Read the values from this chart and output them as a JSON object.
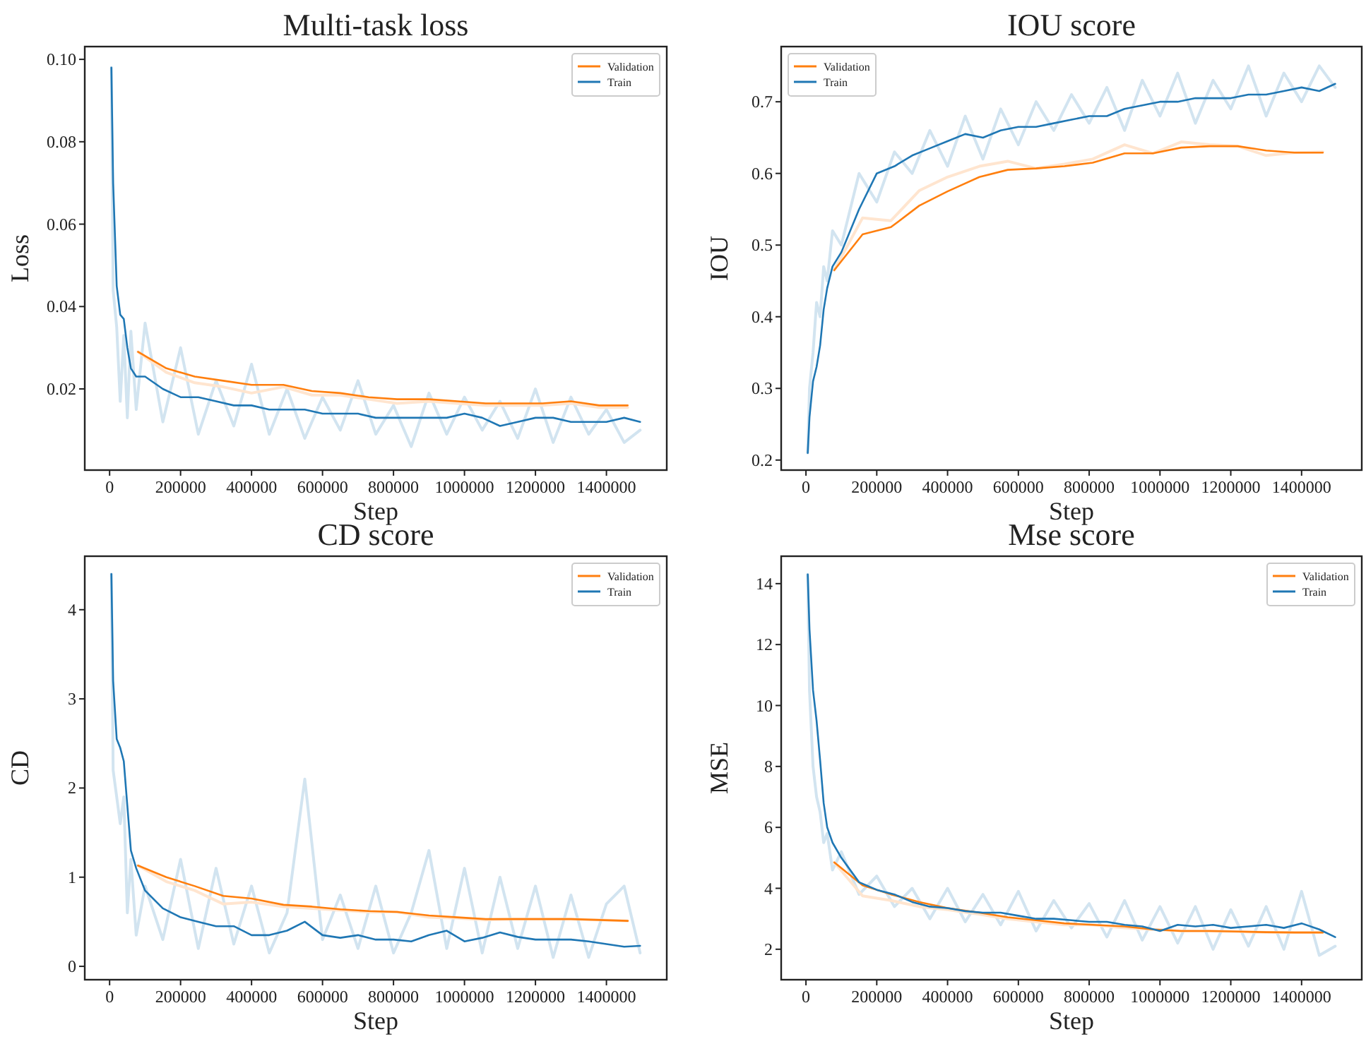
{
  "chart_data": [
    {
      "type": "line",
      "title": "Multi-task loss",
      "xlabel": "Step",
      "ylabel": "Loss",
      "legend": "top right",
      "xlim": [
        -70000,
        1570000
      ],
      "xticks": [
        0,
        200000,
        400000,
        600000,
        800000,
        1000000,
        1200000,
        1400000
      ],
      "ylim": [
        0.0003,
        0.1031
      ],
      "yticks": [
        0.02,
        0.04,
        0.06,
        0.08,
        {
          "value": 0.1,
          "label": "0.10"
        }
      ],
      "series": [
        {
          "color": "#d2e4f0",
          "x": [
            5000,
            10000,
            20000,
            30000,
            40000,
            50000,
            60000,
            75000,
            100000,
            150000,
            200000,
            250000,
            300000,
            350000,
            400000,
            450000,
            500000,
            550000,
            600000,
            650000,
            700000,
            750000,
            800000,
            850000,
            900000,
            950000,
            1000000,
            1050000,
            1100000,
            1150000,
            1200000,
            1250000,
            1300000,
            1350000,
            1400000,
            1450000,
            1495000
          ],
          "values": [
            0.098,
            0.044,
            0.035,
            0.017,
            0.033,
            0.013,
            0.034,
            0.015,
            0.036,
            0.012,
            0.03,
            0.009,
            0.022,
            0.011,
            0.026,
            0.009,
            0.02,
            0.008,
            0.018,
            0.01,
            0.022,
            0.009,
            0.016,
            0.006,
            0.019,
            0.009,
            0.018,
            0.01,
            0.017,
            0.008,
            0.02,
            0.007,
            0.018,
            0.009,
            0.015,
            0.007,
            0.01
          ]
        },
        {
          "color": "#ffe5cf",
          "x": [
            80000,
            160000,
            240000,
            320000,
            400000,
            490000,
            570000,
            650000,
            730000,
            810000,
            900000,
            980000,
            1060000,
            1140000,
            1220000,
            1300000,
            1380000,
            1460000
          ],
          "values": [
            0.029,
            0.024,
            0.0215,
            0.0205,
            0.019,
            0.0205,
            0.0185,
            0.0185,
            0.0175,
            0.0165,
            0.017,
            0.0165,
            0.016,
            0.016,
            0.016,
            0.0165,
            0.0155,
            0.0155
          ]
        },
        {
          "name": "Validation",
          "color": "#ff7f0e",
          "x": [
            80000,
            160000,
            240000,
            320000,
            400000,
            490000,
            570000,
            650000,
            730000,
            810000,
            900000,
            980000,
            1060000,
            1140000,
            1220000,
            1300000,
            1380000,
            1460000
          ],
          "values": [
            0.029,
            0.025,
            0.023,
            0.022,
            0.021,
            0.021,
            0.0195,
            0.019,
            0.018,
            0.0175,
            0.0175,
            0.017,
            0.0165,
            0.0165,
            0.0165,
            0.017,
            0.016,
            0.016
          ]
        },
        {
          "name": "Train",
          "color": "#1f77b4",
          "x": [
            5000,
            10000,
            20000,
            30000,
            40000,
            50000,
            60000,
            75000,
            100000,
            150000,
            200000,
            250000,
            300000,
            350000,
            400000,
            450000,
            500000,
            550000,
            600000,
            650000,
            700000,
            750000,
            800000,
            850000,
            900000,
            950000,
            1000000,
            1050000,
            1100000,
            1150000,
            1200000,
            1250000,
            1300000,
            1350000,
            1400000,
            1450000,
            1495000
          ],
          "values": [
            0.098,
            0.07,
            0.045,
            0.038,
            0.037,
            0.03,
            0.025,
            0.023,
            0.023,
            0.02,
            0.018,
            0.018,
            0.017,
            0.016,
            0.016,
            0.015,
            0.015,
            0.015,
            0.014,
            0.014,
            0.014,
            0.013,
            0.013,
            0.013,
            0.013,
            0.013,
            0.014,
            0.013,
            0.011,
            0.012,
            0.013,
            0.013,
            0.012,
            0.012,
            0.012,
            0.013,
            0.012
          ]
        }
      ]
    },
    {
      "type": "line",
      "title": "IOU score",
      "xlabel": "Step",
      "ylabel": "IOU",
      "legend": "top left",
      "xlim": [
        -70000,
        1570000
      ],
      "xticks": [
        0,
        200000,
        400000,
        600000,
        800000,
        1000000,
        1200000,
        1400000
      ],
      "ylim": [
        0.186,
        0.777
      ],
      "yticks": [
        0.2,
        0.3,
        0.4,
        0.5,
        0.6,
        0.7
      ],
      "series": [
        {
          "color": "#d2e4f0",
          "x": [
            5000,
            10000,
            20000,
            30000,
            40000,
            50000,
            60000,
            75000,
            100000,
            150000,
            200000,
            250000,
            300000,
            350000,
            400000,
            450000,
            500000,
            550000,
            600000,
            650000,
            700000,
            750000,
            800000,
            850000,
            900000,
            950000,
            1000000,
            1050000,
            1100000,
            1150000,
            1200000,
            1250000,
            1300000,
            1350000,
            1400000,
            1450000,
            1495000
          ],
          "values": [
            0.21,
            0.3,
            0.35,
            0.42,
            0.4,
            0.47,
            0.45,
            0.52,
            0.5,
            0.6,
            0.56,
            0.63,
            0.6,
            0.66,
            0.61,
            0.68,
            0.62,
            0.69,
            0.64,
            0.7,
            0.66,
            0.71,
            0.67,
            0.72,
            0.66,
            0.73,
            0.68,
            0.74,
            0.67,
            0.73,
            0.69,
            0.75,
            0.68,
            0.74,
            0.7,
            0.75,
            0.72
          ]
        },
        {
          "color": "#ffe5cf",
          "x": [
            80000,
            160000,
            240000,
            320000,
            400000,
            490000,
            570000,
            650000,
            730000,
            810000,
            900000,
            980000,
            1060000,
            1140000,
            1220000,
            1300000,
            1380000,
            1460000
          ],
          "values": [
            0.465,
            0.538,
            0.534,
            0.576,
            0.595,
            0.61,
            0.617,
            0.607,
            0.613,
            0.62,
            0.64,
            0.628,
            0.644,
            0.64,
            0.638,
            0.625,
            0.629,
            0.63
          ]
        },
        {
          "name": "Validation",
          "color": "#ff7f0e",
          "x": [
            80000,
            160000,
            240000,
            320000,
            400000,
            490000,
            570000,
            650000,
            730000,
            810000,
            900000,
            980000,
            1060000,
            1140000,
            1220000,
            1300000,
            1380000,
            1460000
          ],
          "values": [
            0.465,
            0.515,
            0.525,
            0.555,
            0.575,
            0.595,
            0.605,
            0.607,
            0.61,
            0.615,
            0.628,
            0.628,
            0.636,
            0.638,
            0.638,
            0.632,
            0.629,
            0.629
          ]
        },
        {
          "name": "Train",
          "color": "#1f77b4",
          "x": [
            5000,
            10000,
            20000,
            30000,
            40000,
            50000,
            60000,
            75000,
            100000,
            150000,
            200000,
            250000,
            300000,
            350000,
            400000,
            450000,
            500000,
            550000,
            600000,
            650000,
            700000,
            750000,
            800000,
            850000,
            900000,
            950000,
            1000000,
            1050000,
            1100000,
            1150000,
            1200000,
            1250000,
            1300000,
            1350000,
            1400000,
            1450000,
            1495000
          ],
          "values": [
            0.21,
            0.26,
            0.31,
            0.33,
            0.36,
            0.41,
            0.44,
            0.47,
            0.49,
            0.55,
            0.6,
            0.61,
            0.625,
            0.635,
            0.645,
            0.655,
            0.65,
            0.66,
            0.665,
            0.665,
            0.67,
            0.675,
            0.68,
            0.68,
            0.69,
            0.695,
            0.7,
            0.7,
            0.705,
            0.705,
            0.705,
            0.71,
            0.71,
            0.715,
            0.72,
            0.715,
            0.725
          ]
        }
      ]
    },
    {
      "type": "line",
      "title": "CD score",
      "xlabel": "Step",
      "ylabel": "CD",
      "legend": "top right",
      "xlim": [
        -70000,
        1570000
      ],
      "xticks": [
        0,
        200000,
        400000,
        600000,
        800000,
        1000000,
        1200000,
        1400000
      ],
      "ylim": [
        -0.15,
        4.6
      ],
      "yticks": [
        0,
        1,
        2,
        3,
        4
      ],
      "series": [
        {
          "color": "#d2e4f0",
          "x": [
            5000,
            10000,
            20000,
            30000,
            40000,
            50000,
            60000,
            75000,
            100000,
            150000,
            200000,
            250000,
            300000,
            350000,
            400000,
            450000,
            500000,
            550000,
            600000,
            650000,
            700000,
            750000,
            800000,
            850000,
            900000,
            950000,
            1000000,
            1050000,
            1100000,
            1150000,
            1200000,
            1250000,
            1300000,
            1350000,
            1400000,
            1450000,
            1495000
          ],
          "values": [
            4.4,
            2.2,
            1.9,
            1.6,
            1.9,
            0.6,
            1.2,
            0.35,
            0.9,
            0.3,
            1.2,
            0.2,
            1.1,
            0.25,
            0.9,
            0.15,
            0.6,
            2.1,
            0.3,
            0.8,
            0.2,
            0.9,
            0.15,
            0.6,
            1.3,
            0.2,
            1.1,
            0.15,
            1.0,
            0.2,
            0.9,
            0.1,
            0.8,
            0.1,
            0.7,
            0.9,
            0.15
          ]
        },
        {
          "color": "#ffe5cf",
          "x": [
            80000,
            160000,
            240000,
            320000,
            400000,
            490000,
            570000,
            650000,
            730000,
            810000,
            900000,
            980000,
            1060000,
            1140000,
            1220000,
            1300000,
            1380000,
            1460000
          ],
          "values": [
            1.13,
            0.95,
            0.85,
            0.7,
            0.72,
            0.67,
            0.65,
            0.63,
            0.61,
            0.61,
            0.55,
            0.54,
            0.52,
            0.53,
            0.53,
            0.53,
            0.52,
            0.51
          ]
        },
        {
          "name": "Validation",
          "color": "#ff7f0e",
          "x": [
            80000,
            160000,
            240000,
            320000,
            400000,
            490000,
            570000,
            650000,
            730000,
            810000,
            900000,
            980000,
            1060000,
            1140000,
            1220000,
            1300000,
            1380000,
            1460000
          ],
          "values": [
            1.13,
            1.0,
            0.9,
            0.79,
            0.76,
            0.69,
            0.67,
            0.64,
            0.62,
            0.61,
            0.57,
            0.55,
            0.53,
            0.53,
            0.53,
            0.53,
            0.52,
            0.51
          ]
        },
        {
          "name": "Train",
          "color": "#1f77b4",
          "x": [
            5000,
            10000,
            20000,
            30000,
            40000,
            50000,
            60000,
            75000,
            100000,
            150000,
            200000,
            250000,
            300000,
            350000,
            400000,
            450000,
            500000,
            550000,
            600000,
            650000,
            700000,
            750000,
            800000,
            850000,
            900000,
            950000,
            1000000,
            1050000,
            1100000,
            1150000,
            1200000,
            1250000,
            1300000,
            1350000,
            1400000,
            1450000,
            1495000
          ],
          "values": [
            4.4,
            3.2,
            2.55,
            2.45,
            2.3,
            1.8,
            1.3,
            1.1,
            0.85,
            0.65,
            0.55,
            0.5,
            0.45,
            0.45,
            0.35,
            0.35,
            0.4,
            0.5,
            0.35,
            0.32,
            0.35,
            0.3,
            0.3,
            0.28,
            0.35,
            0.4,
            0.28,
            0.32,
            0.38,
            0.33,
            0.3,
            0.3,
            0.3,
            0.28,
            0.25,
            0.22,
            0.23
          ]
        }
      ]
    },
    {
      "type": "line",
      "title": "Mse score",
      "xlabel": "Step",
      "ylabel": "MSE",
      "legend": "top right",
      "xlim": [
        -70000,
        1570000
      ],
      "xticks": [
        0,
        200000,
        400000,
        600000,
        800000,
        1000000,
        1200000,
        1400000
      ],
      "ylim": [
        1.0,
        14.9
      ],
      "yticks": [
        2,
        4,
        6,
        8,
        10,
        12,
        14
      ],
      "series": [
        {
          "color": "#d2e4f0",
          "x": [
            5000,
            10000,
            20000,
            30000,
            40000,
            50000,
            60000,
            75000,
            100000,
            150000,
            200000,
            250000,
            300000,
            350000,
            400000,
            450000,
            500000,
            550000,
            600000,
            650000,
            700000,
            750000,
            800000,
            850000,
            900000,
            950000,
            1000000,
            1050000,
            1100000,
            1150000,
            1200000,
            1250000,
            1300000,
            1350000,
            1400000,
            1450000,
            1495000
          ],
          "values": [
            14.3,
            10.5,
            8.0,
            7.0,
            6.5,
            5.5,
            5.8,
            4.6,
            5.2,
            3.8,
            4.4,
            3.4,
            4.0,
            3.0,
            4.0,
            2.9,
            3.8,
            2.8,
            3.9,
            2.6,
            3.6,
            2.7,
            3.5,
            2.4,
            3.6,
            2.3,
            3.4,
            2.2,
            3.4,
            2.0,
            3.3,
            2.1,
            3.4,
            2.0,
            3.9,
            1.8,
            2.1
          ]
        },
        {
          "color": "#ffe5cf",
          "x": [
            80000,
            160000,
            240000,
            320000,
            400000,
            490000,
            570000,
            650000,
            730000,
            810000,
            900000,
            980000,
            1060000,
            1140000,
            1220000,
            1300000,
            1380000,
            1460000
          ],
          "values": [
            4.85,
            3.75,
            3.6,
            3.4,
            3.3,
            3.15,
            3.0,
            2.9,
            2.8,
            2.8,
            2.7,
            2.65,
            2.6,
            2.6,
            2.58,
            2.55,
            2.55,
            2.55
          ]
        },
        {
          "name": "Validation",
          "color": "#ff7f0e",
          "x": [
            80000,
            160000,
            240000,
            320000,
            400000,
            490000,
            570000,
            650000,
            730000,
            810000,
            900000,
            980000,
            1060000,
            1140000,
            1220000,
            1300000,
            1380000,
            1460000
          ],
          "values": [
            4.85,
            4.1,
            3.8,
            3.55,
            3.35,
            3.2,
            3.05,
            2.95,
            2.85,
            2.8,
            2.75,
            2.65,
            2.6,
            2.6,
            2.58,
            2.56,
            2.55,
            2.55
          ]
        },
        {
          "name": "Train",
          "color": "#1f77b4",
          "x": [
            5000,
            10000,
            20000,
            30000,
            40000,
            50000,
            60000,
            75000,
            100000,
            150000,
            200000,
            250000,
            300000,
            350000,
            400000,
            450000,
            500000,
            550000,
            600000,
            650000,
            700000,
            750000,
            800000,
            850000,
            900000,
            950000,
            1000000,
            1050000,
            1100000,
            1150000,
            1200000,
            1250000,
            1300000,
            1350000,
            1400000,
            1450000,
            1495000
          ],
          "values": [
            14.3,
            12.5,
            10.5,
            9.5,
            8.2,
            6.8,
            6.0,
            5.5,
            5.0,
            4.2,
            3.95,
            3.8,
            3.55,
            3.4,
            3.35,
            3.25,
            3.2,
            3.2,
            3.1,
            3.0,
            3.0,
            2.95,
            2.9,
            2.9,
            2.8,
            2.75,
            2.6,
            2.8,
            2.75,
            2.8,
            2.7,
            2.75,
            2.8,
            2.7,
            2.85,
            2.65,
            2.4
          ]
        }
      ]
    }
  ]
}
